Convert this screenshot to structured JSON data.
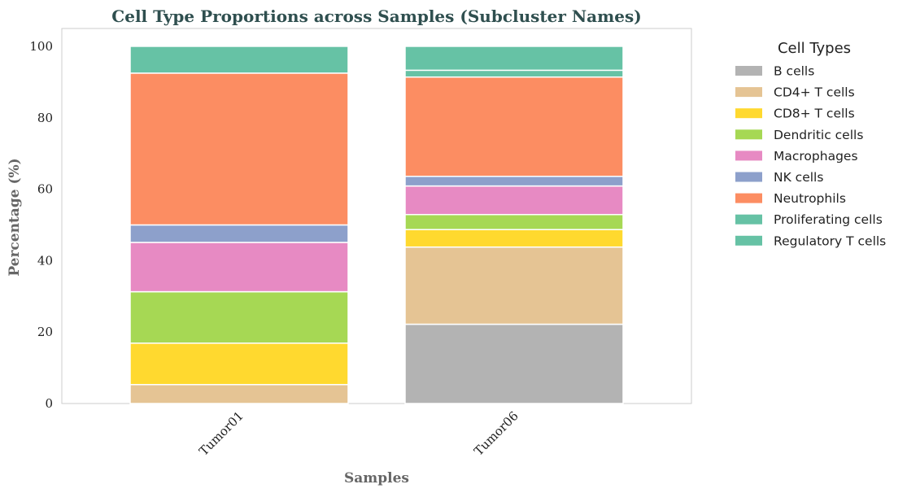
{
  "chart_data": {
    "type": "bar",
    "stacked": true,
    "title": "Cell Type Proportions across Samples (Subcluster Names)",
    "xlabel": "Samples",
    "ylabel": "Percentage (%)",
    "ylim": [
      0,
      105
    ],
    "yticks": [
      0,
      20,
      40,
      60,
      80,
      100
    ],
    "grid": false,
    "categories": [
      "Tumor01",
      "Tumor06"
    ],
    "legend": {
      "title": "Cell Types",
      "placement": "outside-right"
    },
    "series": [
      {
        "name": "B cells",
        "color": "#b3b3b3",
        "values": [
          0.0,
          22.2
        ]
      },
      {
        "name": "CD4+ T cells",
        "color": "#e5c494",
        "values": [
          5.3,
          21.6
        ]
      },
      {
        "name": "CD8+ T cells",
        "color": "#ffd92f",
        "values": [
          11.6,
          4.9
        ]
      },
      {
        "name": "Dendritic cells",
        "color": "#a6d854",
        "values": [
          14.4,
          4.2
        ]
      },
      {
        "name": "Macrophages",
        "color": "#e78ac3",
        "values": [
          13.8,
          8.0
        ]
      },
      {
        "name": "NK cells",
        "color": "#8da0cb",
        "values": [
          4.9,
          2.7
        ]
      },
      {
        "name": "Neutrophils",
        "color": "#fc8d62",
        "values": [
          42.5,
          27.8
        ]
      },
      {
        "name": "Proliferating cells",
        "color": "#66c2a5",
        "values": [
          0.0,
          1.9
        ]
      },
      {
        "name": "Regulatory T cells",
        "color": "#66c2a5",
        "values": [
          7.5,
          6.7
        ]
      }
    ]
  }
}
